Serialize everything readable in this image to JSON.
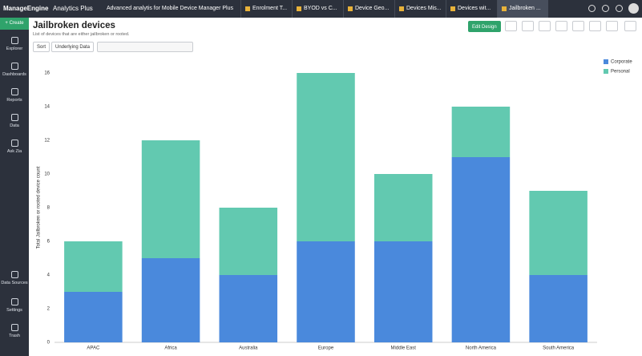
{
  "app": {
    "logo": "ManageEngine",
    "logo_product": "Analytics Plus",
    "workspace": "Advanced analytis for Mobile Device Manager Plus",
    "tabs": [
      "Enrolment T...",
      "BYOD vs C...",
      "Device Geo...",
      "Devices Mis...",
      "Devices wit...",
      "Jailbroken ..."
    ],
    "create": "Create",
    "nav": [
      "Explorer",
      "Dashboards",
      "Reports",
      "Data",
      "Ask Zia"
    ],
    "nav_bottom": [
      "Data Sources",
      "Settings",
      "Trash"
    ]
  },
  "toolbar": {
    "sort": "Sort",
    "underlying_data": "Underlying Data",
    "edit_design": "Edit Design"
  },
  "chart_data": {
    "type": "stacked-bar",
    "title": "Jailbroken devices",
    "subtitle": "List of devices that are either jailbroken or rooted.",
    "y_label": "Total Jailbroken or rooted device count",
    "categories": [
      "APAC",
      "Africa",
      "Australia",
      "Europe",
      "Middle East",
      "North America",
      "South America"
    ],
    "series": [
      {
        "name": "Corporate",
        "color": "#4a89dc",
        "values": [
          3,
          5,
          4,
          6,
          6,
          11,
          4
        ]
      },
      {
        "name": "Personal",
        "color": "#62c9b0",
        "values": [
          3,
          7,
          4,
          10,
          4,
          3,
          5
        ]
      }
    ],
    "ylim": [
      0,
      16
    ],
    "yticks": [
      0,
      2,
      4,
      6,
      8,
      10,
      12,
      14,
      16
    ],
    "grid": false,
    "legend": "top-right"
  }
}
